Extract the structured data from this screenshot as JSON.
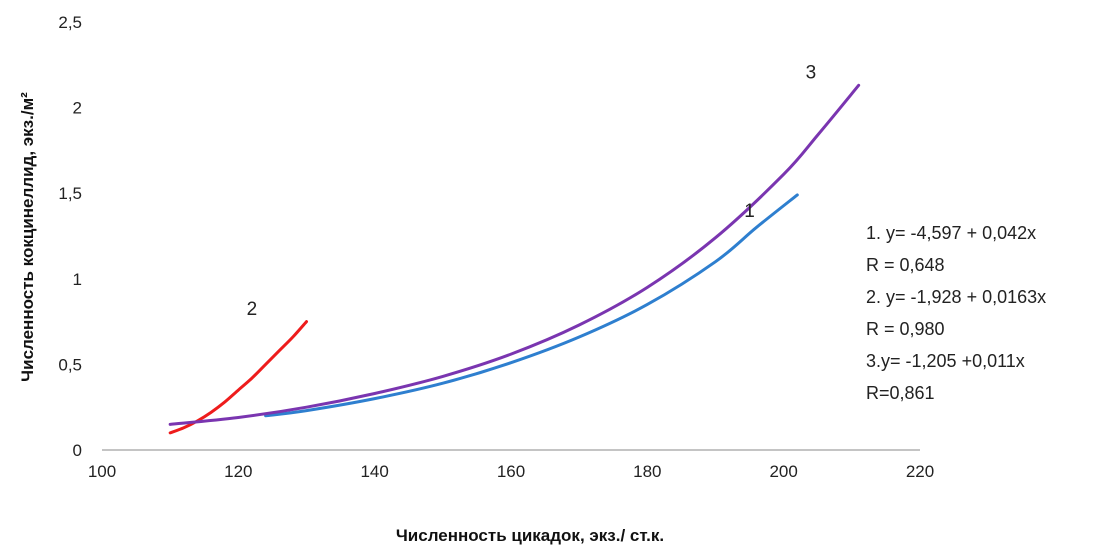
{
  "chart_data": {
    "type": "line",
    "xlabel": "Численность цикадок, экз./ ст.к.",
    "ylabel": "Численность кокцинеллид, экз./м²",
    "xlim": [
      100,
      220
    ],
    "ylim": [
      0,
      2.5
    ],
    "xticks": [
      100,
      120,
      140,
      160,
      180,
      200,
      220
    ],
    "yticks": [
      0,
      0.5,
      1,
      1.5,
      2,
      2.5
    ],
    "xtick_labels": [
      "100",
      "120",
      "140",
      "160",
      "180",
      "200",
      "220"
    ],
    "ytick_labels": [
      "0",
      "0,5",
      "1",
      "1,5",
      "2",
      "2,5"
    ],
    "grid": false,
    "series": [
      {
        "name": "1",
        "color": "#2e7fcf",
        "label_at": [
          195,
          1.36
        ],
        "points": [
          [
            124,
            0.2
          ],
          [
            130,
            0.23
          ],
          [
            140,
            0.3
          ],
          [
            150,
            0.39
          ],
          [
            160,
            0.51
          ],
          [
            170,
            0.66
          ],
          [
            180,
            0.85
          ],
          [
            190,
            1.1
          ],
          [
            196,
            1.3
          ],
          [
            202,
            1.49
          ]
        ]
      },
      {
        "name": "2",
        "color": "#ee1c1c",
        "label_at": [
          122,
          0.79
        ],
        "points": [
          [
            110,
            0.1
          ],
          [
            112,
            0.13
          ],
          [
            114,
            0.17
          ],
          [
            116,
            0.22
          ],
          [
            118,
            0.28
          ],
          [
            120,
            0.35
          ],
          [
            122,
            0.42
          ],
          [
            124,
            0.5
          ],
          [
            126,
            0.58
          ],
          [
            128,
            0.66
          ],
          [
            130,
            0.75
          ]
        ]
      },
      {
        "name": "3",
        "color": "#7a35b0",
        "label_at": [
          204,
          2.17
        ],
        "points": [
          [
            110,
            0.15
          ],
          [
            120,
            0.19
          ],
          [
            130,
            0.25
          ],
          [
            140,
            0.33
          ],
          [
            150,
            0.43
          ],
          [
            160,
            0.56
          ],
          [
            170,
            0.73
          ],
          [
            180,
            0.95
          ],
          [
            190,
            1.24
          ],
          [
            200,
            1.61
          ],
          [
            205,
            1.84
          ],
          [
            211,
            2.13
          ]
        ]
      }
    ],
    "annotation_lines": [
      "1. y= -4,597 + 0,042x",
      "R = 0,648",
      "2. y= -1,928 + 0,0163x",
      "R = 0,980",
      "3.y= -1,205 +0,011x",
      "R=0,861"
    ]
  }
}
